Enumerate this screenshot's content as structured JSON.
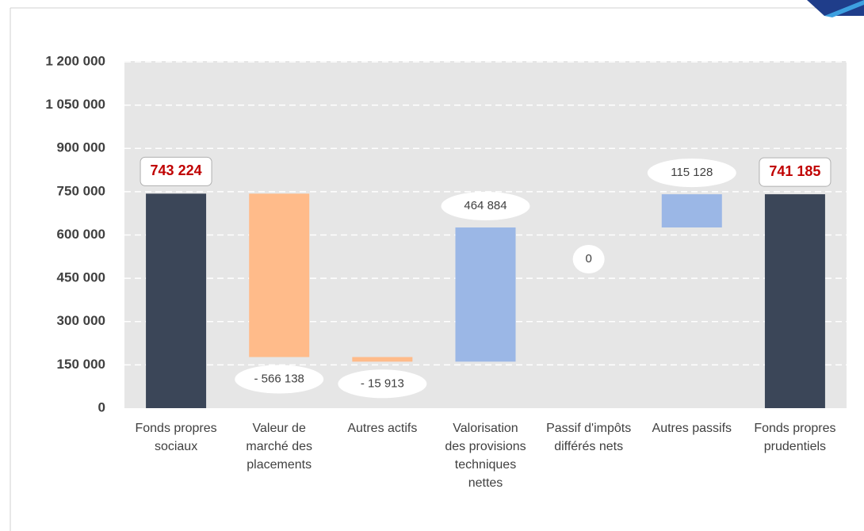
{
  "chart_data": {
    "type": "waterfall",
    "categories": [
      "Fonds propres sociaux",
      "Valeur de marché des placements",
      "Autres actifs",
      "Valorisation des provisions techniques nettes",
      "Passif d'impôts différés nets",
      "Autres passifs",
      "Fonds propres prudentiels"
    ],
    "measures": [
      "total",
      "relative",
      "relative",
      "relative",
      "relative",
      "relative",
      "total"
    ],
    "values": [
      743224,
      -566138,
      -15913,
      464884,
      0,
      115128,
      741185
    ],
    "value_labels": [
      "743 224",
      "- 566 138",
      "- 15 913",
      "464 884",
      "0",
      "115 128",
      "741 185"
    ],
    "colors": {
      "total": "#3b4658",
      "decrease": "#ffbb8a",
      "increase": "#9bb7e6"
    },
    "ylim": [
      0,
      1200000
    ],
    "yticks": [
      0,
      {
        "value": 150000,
        "label": "150 000"
      },
      {
        "value": 300000,
        "label": "300 000"
      },
      {
        "value": 450000,
        "label": "450 000"
      },
      {
        "value": 600000,
        "label": "600 000"
      },
      {
        "value": 750000,
        "label": "750 000"
      },
      {
        "value": 900000,
        "label": "900 000"
      },
      {
        "value": 1050000,
        "label": "1 050 000"
      },
      {
        "value": 1200000,
        "label": "1 200 000"
      }
    ],
    "grid": true
  }
}
